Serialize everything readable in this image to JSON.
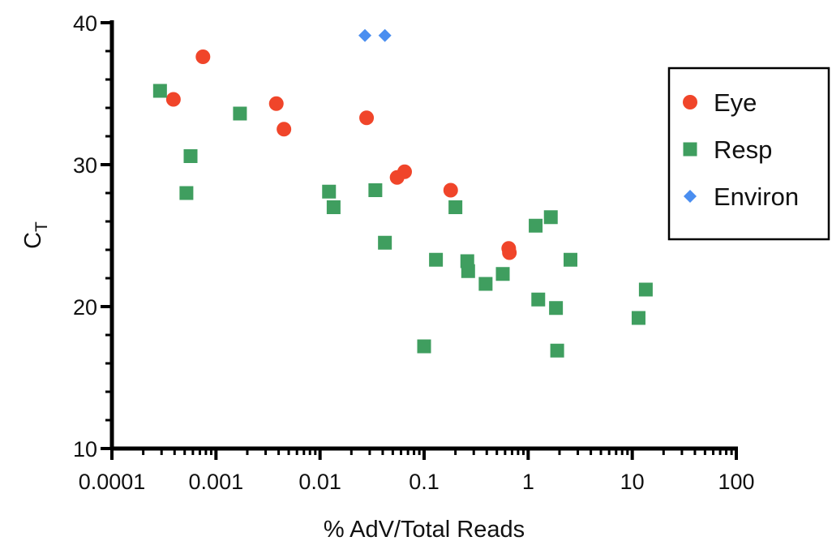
{
  "chart_data": {
    "type": "scatter",
    "title": "",
    "xlabel": "% AdV/Total Reads",
    "ylabel": "CT",
    "ylabel_main": "C",
    "ylabel_sub": "T",
    "x_scale": "log",
    "xlim": [
      0.0001,
      100
    ],
    "ylim": [
      10,
      40
    ],
    "x_ticks": [
      0.0001,
      0.001,
      0.01,
      0.1,
      1,
      10,
      100
    ],
    "x_tick_labels": [
      "0.0001",
      "0.001",
      "0.01",
      "0.1",
      "1",
      "10",
      "100"
    ],
    "y_ticks": [
      10,
      20,
      30,
      40
    ],
    "y_tick_labels": [
      "10",
      "20",
      "30",
      "40"
    ],
    "grid": false,
    "legend_position": "top-right",
    "series": [
      {
        "name": "Eye",
        "marker": "circle",
        "color": "#f0452a",
        "points": [
          [
            0.00039,
            34.6
          ],
          [
            0.00075,
            37.6
          ],
          [
            0.0038,
            34.3
          ],
          [
            0.0045,
            32.5
          ],
          [
            0.028,
            33.3
          ],
          [
            0.055,
            29.1
          ],
          [
            0.065,
            29.5
          ],
          [
            0.18,
            28.2
          ],
          [
            0.65,
            24.1
          ],
          [
            0.66,
            23.8
          ]
        ]
      },
      {
        "name": "Resp",
        "marker": "square",
        "color": "#3f9e5f",
        "points": [
          [
            0.00029,
            35.2
          ],
          [
            0.00052,
            28.0
          ],
          [
            0.00057,
            30.6
          ],
          [
            0.0017,
            33.6
          ],
          [
            0.0122,
            28.1
          ],
          [
            0.0135,
            27.0
          ],
          [
            0.034,
            28.2
          ],
          [
            0.042,
            24.5
          ],
          [
            0.1,
            17.2
          ],
          [
            0.13,
            23.3
          ],
          [
            0.2,
            27.0
          ],
          [
            0.26,
            23.2
          ],
          [
            0.265,
            22.5
          ],
          [
            0.39,
            21.6
          ],
          [
            0.57,
            22.3
          ],
          [
            1.18,
            25.7
          ],
          [
            1.25,
            20.5
          ],
          [
            1.65,
            26.3
          ],
          [
            1.85,
            19.9
          ],
          [
            1.9,
            16.9
          ],
          [
            2.55,
            23.3
          ],
          [
            11.5,
            19.2
          ],
          [
            13.5,
            21.2
          ]
        ]
      },
      {
        "name": "Environ",
        "marker": "diamond",
        "color": "#4a8ef0",
        "points": [
          [
            0.027,
            39.1
          ],
          [
            0.042,
            39.1
          ]
        ]
      }
    ]
  }
}
